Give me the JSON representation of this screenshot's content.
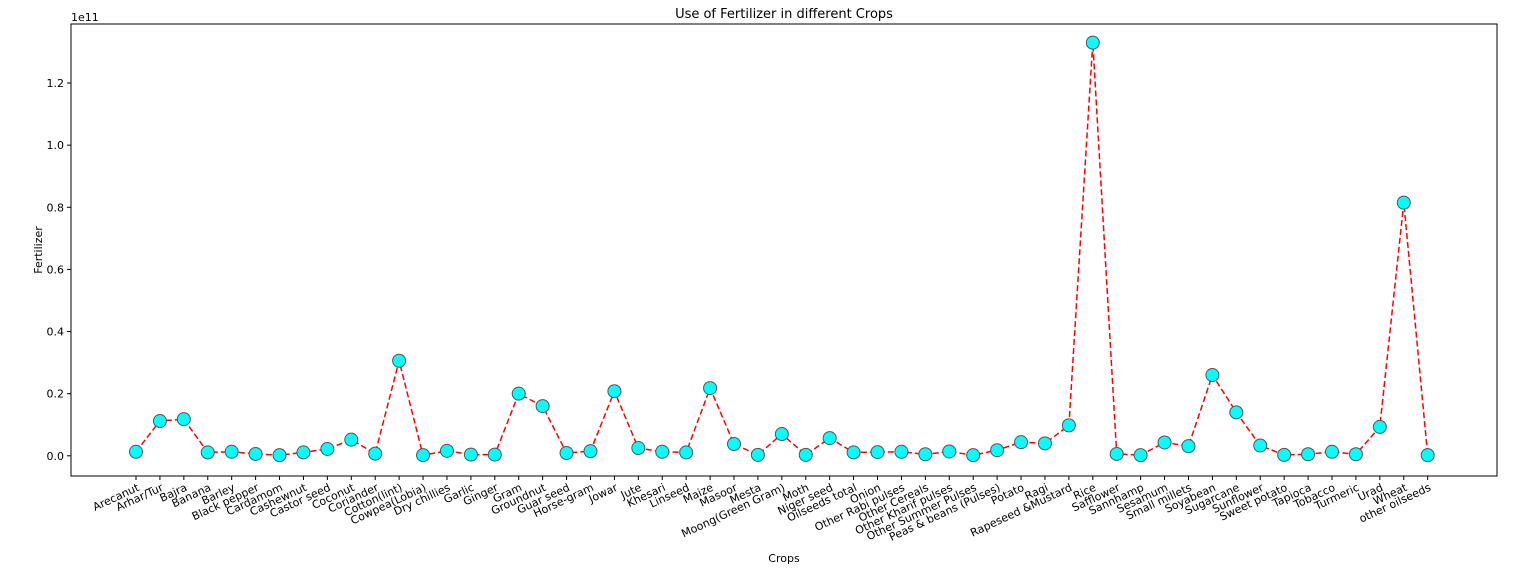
{
  "chart_data": {
    "type": "line",
    "title": "Use of Fertilizer in different Crops",
    "xlabel": "Crops",
    "ylabel": "Fertilizer",
    "y_offset_label": "1e11",
    "y_ticks": [
      "0.0",
      "0.2",
      "0.4",
      "0.6",
      "0.8",
      "1.0",
      "1.2"
    ],
    "ylim": [
      -0.065,
      1.39
    ],
    "grid": false,
    "line_style": "dashed",
    "line_color": "#ff0000",
    "marker_face_color": "#00ffff",
    "marker_edge_color": "#555555",
    "categories": [
      "Arecanut",
      "Arhar/Tur",
      "Bajra",
      "Banana",
      "Barley",
      "Black pepper",
      "Cardamom",
      "Cashewnut",
      "Castor seed",
      "Coconut",
      "Coriander",
      "Cotton(lint)",
      "Cowpea(Lobia)",
      "Dry chillies",
      "Garlic",
      "Ginger",
      "Gram",
      "Groundnut",
      "Guar seed",
      "Horse-gram",
      "Jowar",
      "Jute",
      "Khesari",
      "Linseed",
      "Maize",
      "Masoor",
      "Mesta",
      "Moong(Green Gram)",
      "Moth",
      "Niger seed",
      "Oilseeds total",
      "Onion",
      "Other Rabi pulses",
      "Other Cereals",
      "Other Kharif pulses",
      "Other Summer Pulses",
      "Peas & beans (Pulses)",
      "Potato",
      "Ragi",
      "Rapeseed &Mustard",
      "Rice",
      "Safflower",
      "Sannhamp",
      "Sesamum",
      "Small millets",
      "Soyabean",
      "Sugarcane",
      "Sunflower",
      "Sweet potato",
      "Tapioca",
      "Tobacco",
      "Turmeric",
      "Urad",
      "Wheat",
      "other oilseeds"
    ],
    "series": [
      {
        "values": [
          0.013,
          0.112,
          0.118,
          0.011,
          0.013,
          0.006,
          0.002,
          0.011,
          0.022,
          0.052,
          0.007,
          0.306,
          0.002,
          0.016,
          0.004,
          0.004,
          0.2,
          0.16,
          0.009,
          0.015,
          0.208,
          0.025,
          0.013,
          0.011,
          0.218,
          0.038,
          0.003,
          0.07,
          0.003,
          0.057,
          0.011,
          0.012,
          0.013,
          0.005,
          0.014,
          0.002,
          0.018,
          0.044,
          0.04,
          0.098,
          1.33,
          0.006,
          0.002,
          0.043,
          0.031,
          0.26,
          0.14,
          0.033,
          0.003,
          0.005,
          0.013,
          0.005,
          0.093,
          0.815,
          0.002
        ]
      }
    ]
  }
}
